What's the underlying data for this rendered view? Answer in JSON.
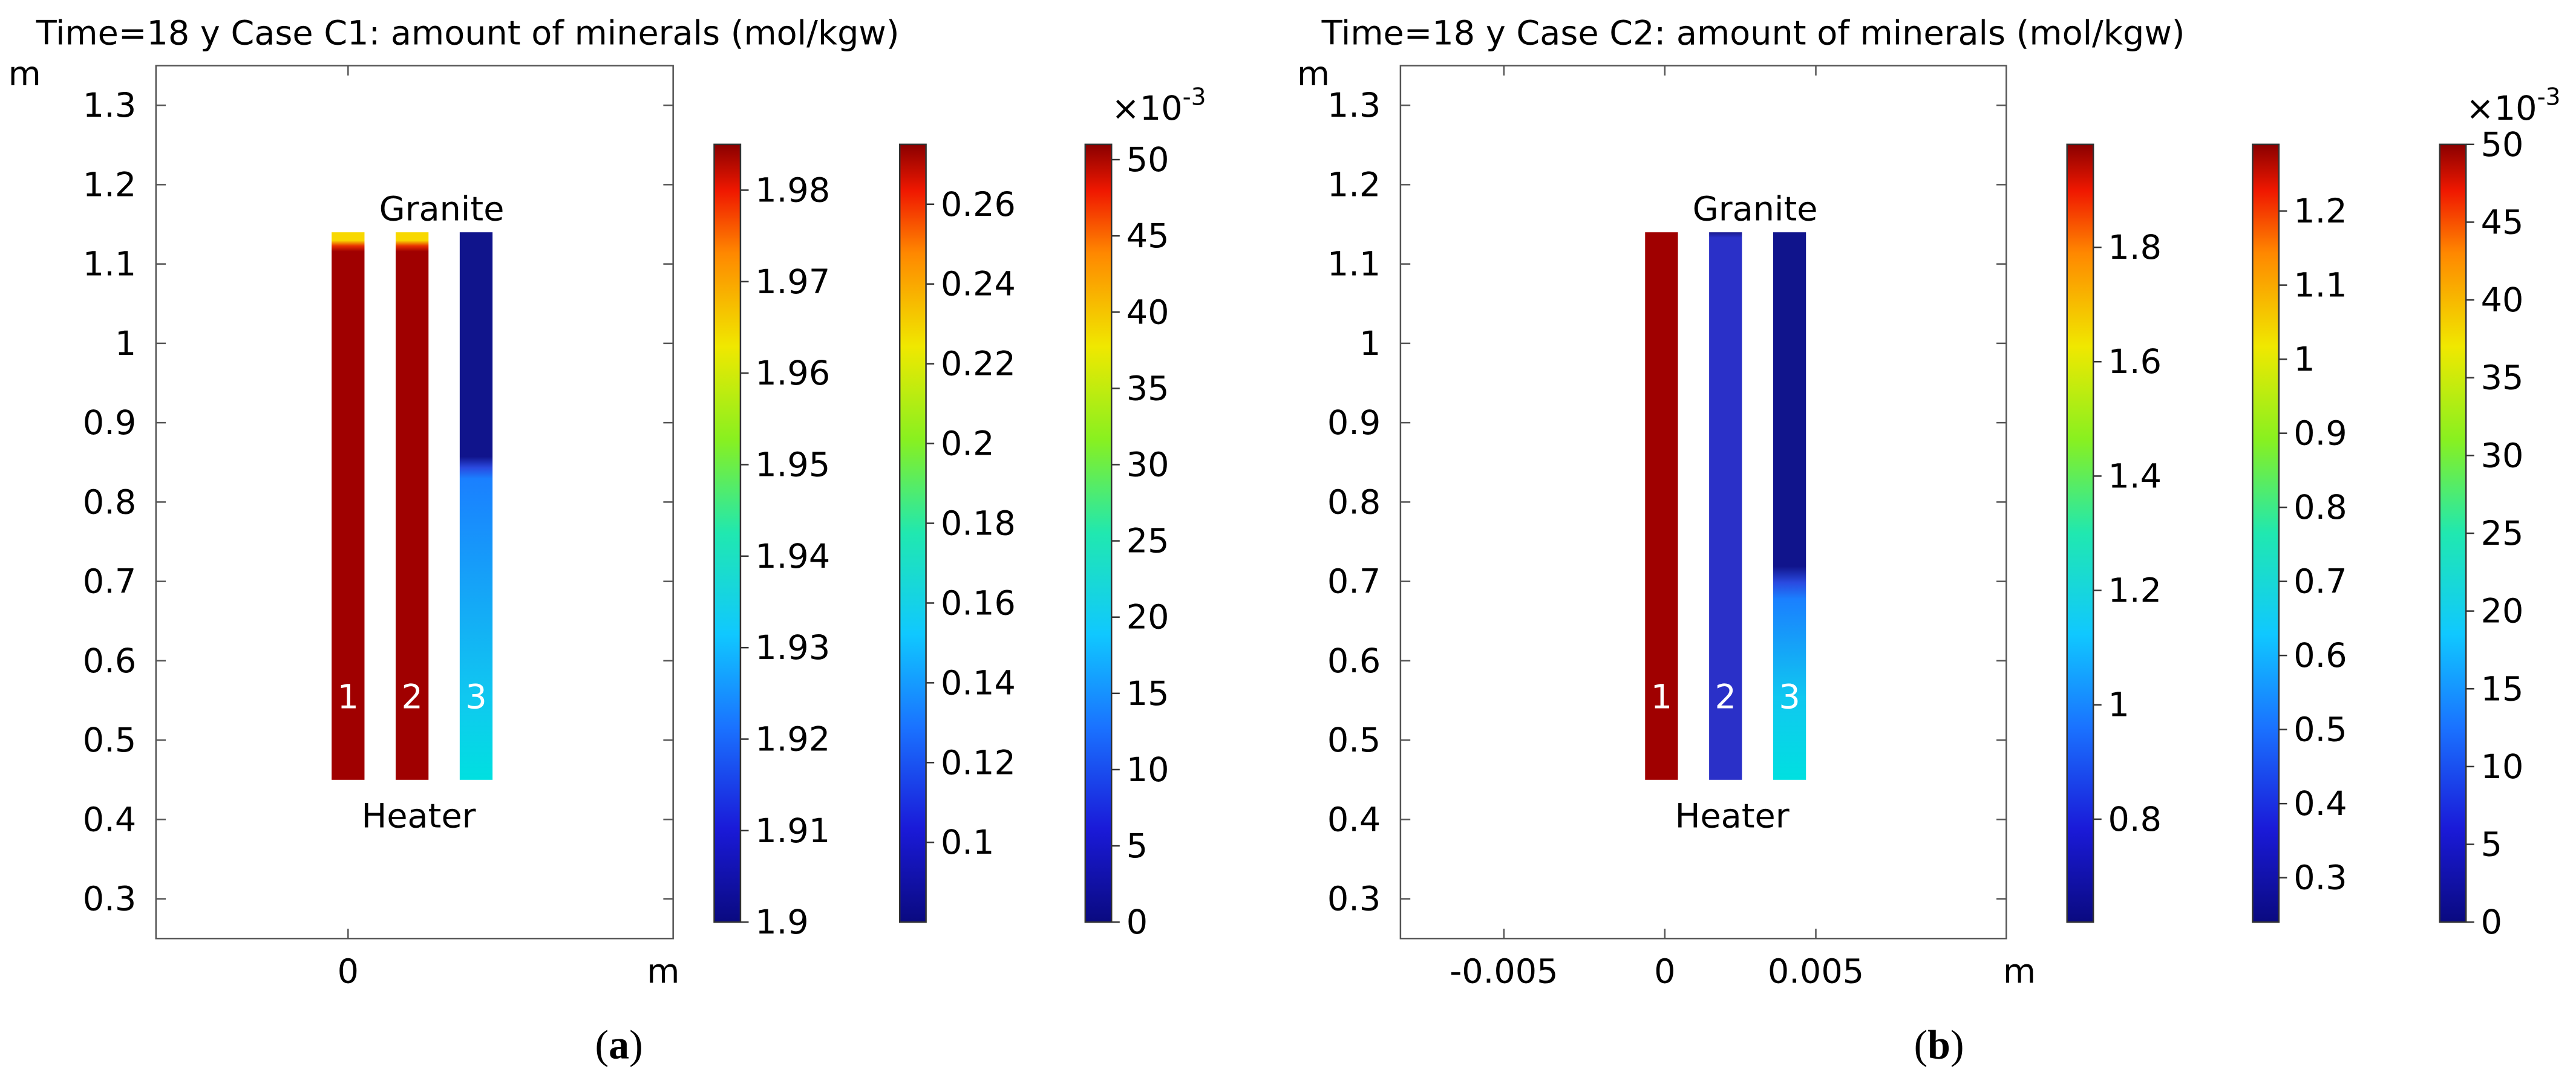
{
  "panels": [
    {
      "id": "a",
      "title": "Time=18 y Case C1: amount of minerals (mol/kgw)",
      "caption_open": "(",
      "caption_letter": "a",
      "caption_close": ")",
      "yaxis_unit": "m",
      "xaxis_unit": "m",
      "y_ticks": [
        "1.3",
        "1.2",
        "1.1",
        "1",
        "0.9",
        "0.8",
        "0.7",
        "0.6",
        "0.5",
        "0.4",
        "0.3"
      ],
      "x_ticks": [
        "0"
      ],
      "label_top": "Granite",
      "label_bottom": "Heater",
      "column_labels": [
        "1",
        "2",
        "3"
      ],
      "columns": [
        {
          "stops": [
            [
              0,
              "#a00000"
            ],
            [
              0.965,
              "#a00000"
            ],
            [
              0.975,
              "#e83000"
            ],
            [
              0.985,
              "#f8d800"
            ],
            [
              1,
              "#f8d800"
            ]
          ]
        },
        {
          "stops": [
            [
              0,
              "#a00000"
            ],
            [
              0.965,
              "#a00000"
            ],
            [
              0.975,
              "#e83000"
            ],
            [
              0.985,
              "#f8d800"
            ],
            [
              1,
              "#f8d800"
            ]
          ]
        },
        {
          "stops": [
            [
              0,
              "#00e0e0"
            ],
            [
              0.15,
              "#10c8f0"
            ],
            [
              0.55,
              "#1a80ff"
            ],
            [
              0.57,
              "#2a4ae0"
            ],
            [
              0.59,
              "#10148c"
            ],
            [
              1,
              "#10148c"
            ]
          ]
        }
      ],
      "colorbars": [
        {
          "ticks": [
            "1.98",
            "1.97",
            "1.96",
            "1.95",
            "1.94",
            "1.93",
            "1.92",
            "1.91",
            "1.9"
          ],
          "exponent": null
        },
        {
          "ticks": [
            "0.26",
            "0.24",
            "0.22",
            "0.2",
            "0.18",
            "0.16",
            "0.14",
            "0.12",
            "0.1"
          ],
          "exponent": null
        },
        {
          "ticks": [
            "50",
            "45",
            "40",
            "35",
            "30",
            "25",
            "20",
            "15",
            "10",
            "5",
            "0"
          ],
          "exponent": {
            "base": "×10",
            "power": "-3"
          }
        }
      ]
    },
    {
      "id": "b",
      "title": "Time=18 y Case C2: amount of minerals (mol/kgw)",
      "caption_open": "(",
      "caption_letter": "b",
      "caption_close": ")",
      "yaxis_unit": "m",
      "xaxis_unit": "m",
      "y_ticks": [
        "1.3",
        "1.2",
        "1.1",
        "1",
        "0.9",
        "0.8",
        "0.7",
        "0.6",
        "0.5",
        "0.4",
        "0.3"
      ],
      "x_ticks": [
        "-0.005",
        "0",
        "0.005"
      ],
      "label_top": "Granite",
      "label_bottom": "Heater",
      "column_labels": [
        "1",
        "2",
        "3"
      ],
      "columns": [
        {
          "stops": [
            [
              0,
              "#a00000"
            ],
            [
              1,
              "#a00000"
            ]
          ]
        },
        {
          "stops": [
            [
              0,
              "#2a30c8"
            ],
            [
              0.99,
              "#2a30c8"
            ],
            [
              1,
              "#1a1a90"
            ]
          ]
        },
        {
          "stops": [
            [
              0,
              "#00e0e0"
            ],
            [
              0.15,
              "#10c8f0"
            ],
            [
              0.33,
              "#1a80ff"
            ],
            [
              0.36,
              "#2a4ae0"
            ],
            [
              0.39,
              "#10148c"
            ],
            [
              1,
              "#10148c"
            ]
          ]
        }
      ],
      "colorbars": [
        {
          "ticks": [
            "1.8",
            "1.6",
            "1.4",
            "1.2",
            "1",
            "0.8"
          ],
          "exponent": null
        },
        {
          "ticks": [
            "1.2",
            "1.1",
            "1",
            "0.9",
            "0.8",
            "0.7",
            "0.6",
            "0.5",
            "0.4",
            "0.3"
          ],
          "exponent": null
        },
        {
          "ticks": [
            "50",
            "45",
            "40",
            "35",
            "30",
            "25",
            "20",
            "15",
            "10",
            "5",
            "0"
          ],
          "exponent": {
            "base": "×10",
            "power": "-3"
          }
        }
      ]
    }
  ],
  "chart_data": [
    {
      "type": "heatmap",
      "title": "Time=18 y Case C1: amount of minerals (mol/kgw)",
      "xlabel": "m",
      "ylabel": "m",
      "ylim": [
        0.25,
        1.35
      ],
      "y_ticks": [
        0.3,
        0.4,
        0.5,
        0.6,
        0.7,
        0.8,
        0.9,
        1.0,
        1.1,
        1.2,
        1.3
      ],
      "x_ticks": [
        0
      ],
      "domain_y": [
        0.45,
        1.14
      ],
      "annotations": [
        "Granite",
        "Heater",
        "1",
        "2",
        "3"
      ],
      "colorbars": [
        {
          "series": "1",
          "range": [
            1.9,
            1.985
          ],
          "ticks": [
            1.9,
            1.91,
            1.92,
            1.93,
            1.94,
            1.95,
            1.96,
            1.97,
            1.98
          ]
        },
        {
          "series": "2",
          "range": [
            0.08,
            0.275
          ],
          "ticks": [
            0.1,
            0.12,
            0.14,
            0.16,
            0.18,
            0.2,
            0.22,
            0.24,
            0.26
          ]
        },
        {
          "series": "3",
          "range": [
            0,
            51
          ],
          "scale": "1e-3",
          "ticks": [
            0,
            5,
            10,
            15,
            20,
            25,
            30,
            35,
            40,
            45,
            50
          ]
        }
      ]
    },
    {
      "type": "heatmap",
      "title": "Time=18 y Case C2: amount of minerals (mol/kgw)",
      "xlabel": "m",
      "ylabel": "m",
      "ylim": [
        0.25,
        1.35
      ],
      "y_ticks": [
        0.3,
        0.4,
        0.5,
        0.6,
        0.7,
        0.8,
        0.9,
        1.0,
        1.1,
        1.2,
        1.3
      ],
      "x_ticks": [
        -0.005,
        0,
        0.005
      ],
      "domain_y": [
        0.45,
        1.14
      ],
      "annotations": [
        "Granite",
        "Heater",
        "1",
        "2",
        "3"
      ],
      "colorbars": [
        {
          "series": "1",
          "range": [
            0.62,
            1.98
          ],
          "ticks": [
            0.8,
            1.0,
            1.2,
            1.4,
            1.6,
            1.8
          ]
        },
        {
          "series": "2",
          "range": [
            0.24,
            1.29
          ],
          "ticks": [
            0.3,
            0.4,
            0.5,
            0.6,
            0.7,
            0.8,
            0.9,
            1.0,
            1.1,
            1.2
          ]
        },
        {
          "series": "3",
          "range": [
            0,
            50
          ],
          "scale": "1e-3",
          "ticks": [
            0,
            5,
            10,
            15,
            20,
            25,
            30,
            35,
            40,
            45,
            50
          ]
        }
      ]
    }
  ]
}
